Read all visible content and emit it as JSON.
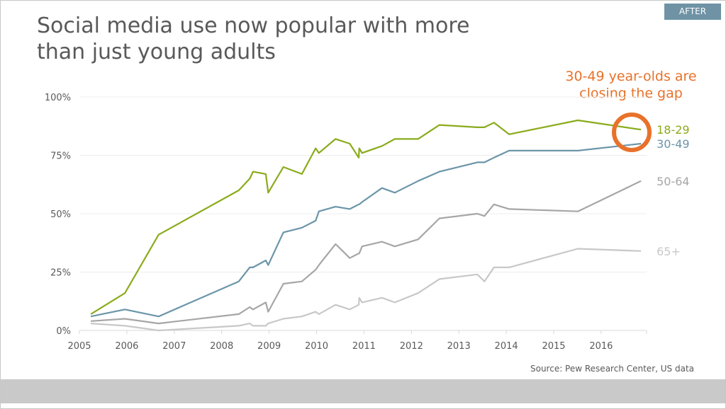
{
  "badge": "AFTER",
  "chart_data": {
    "type": "line",
    "title": "Social media use now popular with more than just young adults",
    "annotation": "30-49 year-olds are closing the gap",
    "annotation_lines": [
      "30-49 year-olds are",
      "closing the gap"
    ],
    "source": "Source: Pew Research Center, US data",
    "xlabel": "",
    "ylabel": "",
    "xlim": [
      2005,
      2017
    ],
    "ylim": [
      0,
      100
    ],
    "x_ticks": [
      "2005",
      "2006",
      "2007",
      "2008",
      "2009",
      "2010",
      "2011",
      "2012",
      "2013",
      "2014",
      "2015",
      "2016"
    ],
    "y_ticks": [
      "0%",
      "25%",
      "50%",
      "75%",
      "100%"
    ],
    "grid": true,
    "x": [
      2005.24,
      2005.96,
      2006.67,
      2008.36,
      2008.59,
      2008.66,
      2008.93,
      2008.98,
      2009.3,
      2009.69,
      2009.98,
      2010.05,
      2010.4,
      2010.7,
      2010.89,
      2010.9,
      2010.96,
      2011.38,
      2011.65,
      2012.14,
      2012.59,
      2013.39,
      2013.54,
      2013.74,
      2014.06,
      2015.51,
      2016.84
    ],
    "series": [
      {
        "name": "18-29",
        "color": "#8aab1b",
        "values": [
          7,
          16,
          41,
          60,
          65,
          68,
          67,
          59,
          70,
          67,
          78,
          76,
          82,
          80,
          74,
          78,
          76,
          79,
          82,
          82,
          88,
          87,
          87,
          89,
          84,
          90,
          86
        ]
      },
      {
        "name": "30-49",
        "color": "#6b95a8",
        "values": [
          6,
          9,
          6,
          21,
          27,
          27,
          30,
          28,
          42,
          44,
          47,
          51,
          53,
          52,
          54,
          54,
          55,
          61,
          59,
          64,
          68,
          72,
          72,
          74,
          77,
          77,
          80
        ]
      },
      {
        "name": "50-64",
        "color": "#a6a6a6",
        "values": [
          4,
          5,
          3,
          7,
          10,
          9,
          12,
          8,
          20,
          21,
          26,
          28,
          37,
          31,
          33,
          33,
          36,
          38,
          36,
          39,
          48,
          50,
          49,
          54,
          52,
          51,
          64
        ]
      },
      {
        "name": "65+",
        "color": "#c8c8c8",
        "values": [
          3,
          2,
          0,
          2,
          3,
          2,
          2,
          3,
          5,
          6,
          8,
          7,
          11,
          9,
          11,
          14,
          12,
          14,
          12,
          16,
          22,
          24,
          21,
          27,
          27,
          35,
          34
        ]
      }
    ],
    "highlight_color": "#e8722a"
  }
}
